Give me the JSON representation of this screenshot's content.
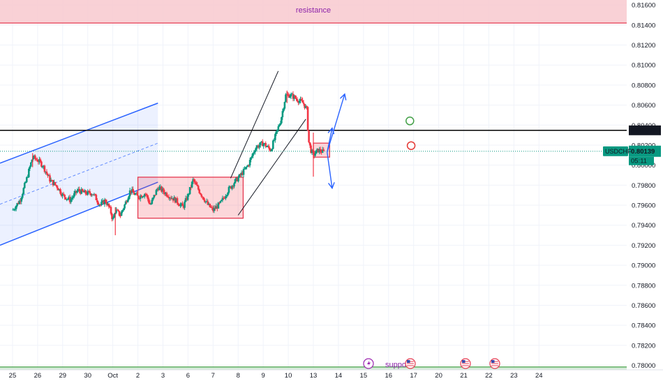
{
  "chart_data": {
    "type": "candlestick",
    "symbol": "USDCHF",
    "last_price": "0.80139",
    "countdown": "05:11",
    "level_label": "0.80348",
    "level_value": 0.80348,
    "ylim": [
      0.77955,
      0.8165
    ],
    "xlim": [
      -0.5,
      24.5
    ],
    "y_ticks": [
      "0.81600",
      "0.81400",
      "0.81200",
      "0.81000",
      "0.80800",
      "0.80600",
      "0.80400",
      "0.80200",
      "0.80000",
      "0.79800",
      "0.79600",
      "0.79400",
      "0.79200",
      "0.79000",
      "0.78800",
      "0.78600",
      "0.78400",
      "0.78200",
      "0.78000"
    ],
    "x_ticks": [
      {
        "label": "25",
        "x": 0
      },
      {
        "label": "26",
        "x": 1
      },
      {
        "label": "29",
        "x": 2
      },
      {
        "label": "30",
        "x": 3
      },
      {
        "label": "Oct",
        "x": 4
      },
      {
        "label": "2",
        "x": 5
      },
      {
        "label": "3",
        "x": 6
      },
      {
        "label": "6",
        "x": 7
      },
      {
        "label": "7",
        "x": 8
      },
      {
        "label": "8",
        "x": 9
      },
      {
        "label": "9",
        "x": 10
      },
      {
        "label": "10",
        "x": 11
      },
      {
        "label": "13",
        "x": 12
      },
      {
        "label": "14",
        "x": 13
      },
      {
        "label": "15",
        "x": 14
      },
      {
        "label": "16",
        "x": 15
      },
      {
        "label": "17",
        "x": 16
      },
      {
        "label": "20",
        "x": 17
      },
      {
        "label": "21",
        "x": 18
      },
      {
        "label": "22",
        "x": 19
      },
      {
        "label": "23",
        "x": 20
      },
      {
        "label": "24",
        "x": 21
      }
    ],
    "price_path": [
      [
        0.0,
        0.7955
      ],
      [
        0.3,
        0.7965
      ],
      [
        0.55,
        0.7985
      ],
      [
        0.8,
        0.8008
      ],
      [
        1.0,
        0.8005
      ],
      [
        1.2,
        0.8
      ],
      [
        1.5,
        0.7985
      ],
      [
        1.8,
        0.7978
      ],
      [
        2.0,
        0.797
      ],
      [
        2.3,
        0.7965
      ],
      [
        2.6,
        0.7975
      ],
      [
        2.9,
        0.7972
      ],
      [
        3.2,
        0.7972
      ],
      [
        3.5,
        0.796
      ],
      [
        3.7,
        0.7965
      ],
      [
        3.9,
        0.7955
      ],
      [
        4.0,
        0.7945
      ],
      [
        4.1,
        0.7955
      ],
      [
        4.3,
        0.795
      ],
      [
        4.5,
        0.7962
      ],
      [
        4.7,
        0.7975
      ],
      [
        5.0,
        0.7968
      ],
      [
        5.3,
        0.7972
      ],
      [
        5.5,
        0.796
      ],
      [
        5.8,
        0.7978
      ],
      [
        6.1,
        0.7972
      ],
      [
        6.5,
        0.7965
      ],
      [
        6.8,
        0.7958
      ],
      [
        7.0,
        0.797
      ],
      [
        7.2,
        0.7985
      ],
      [
        7.5,
        0.7972
      ],
      [
        7.8,
        0.796
      ],
      [
        8.0,
        0.7955
      ],
      [
        8.3,
        0.7962
      ],
      [
        8.6,
        0.7975
      ],
      [
        8.85,
        0.7983
      ],
      [
        9.1,
        0.799
      ],
      [
        9.4,
        0.8
      ],
      [
        9.7,
        0.8018
      ],
      [
        10.0,
        0.8022
      ],
      [
        10.3,
        0.8015
      ],
      [
        10.5,
        0.803
      ],
      [
        10.7,
        0.8045
      ],
      [
        10.9,
        0.807
      ],
      [
        11.1,
        0.807
      ],
      [
        11.4,
        0.8065
      ],
      [
        11.6,
        0.8062
      ],
      [
        11.75,
        0.8055
      ],
      [
        11.8,
        0.8025
      ],
      [
        11.9,
        0.8015
      ],
      [
        12.0,
        0.801
      ],
      [
        12.2,
        0.8015
      ],
      [
        12.4,
        0.8013
      ]
    ],
    "wicks": [
      [
        12.0,
        0.80325,
        0.79885
      ],
      [
        0.8,
        0.8012,
        0.7998
      ],
      [
        10.95,
        0.80745,
        0.8062
      ],
      [
        4.1,
        0.7958,
        0.793
      ]
    ],
    "annotations": {
      "resistance_label": "resistance",
      "support_label": "suppo",
      "resistance_zone": [
        0.8142,
        0.8165
      ],
      "support_zone": [
        0.77955,
        0.7797
      ],
      "box_range": {
        "x": [
          5.0,
          9.2
        ],
        "y": [
          0.7947,
          0.7988
        ]
      },
      "box_small": {
        "x": [
          12.0,
          12.65
        ],
        "y": [
          0.8008,
          0.8022
        ]
      },
      "channel_blue": {
        "lower": [
          [
            -0.5,
            0.792
          ],
          [
            5.8,
            0.7983
          ]
        ],
        "upper": [
          [
            -0.5,
            0.8002
          ],
          [
            5.8,
            0.8062
          ]
        ],
        "mid": [
          [
            -0.5,
            0.7961
          ],
          [
            5.8,
            0.8022
          ]
        ]
      },
      "wedge_black": {
        "upper": [
          [
            8.7,
            0.7987
          ],
          [
            10.6,
            0.8094
          ]
        ],
        "lower": [
          [
            9.0,
            0.795
          ],
          [
            11.7,
            0.8046
          ]
        ]
      },
      "arrows_blue": [
        {
          "from": [
            12.55,
            0.8013
          ],
          "to": [
            12.75,
            0.8037
          ]
        },
        {
          "from": [
            12.55,
            0.8013
          ],
          "to": [
            13.25,
            0.8071
          ]
        },
        {
          "from": [
            12.55,
            0.8013
          ],
          "to": [
            12.75,
            0.7977
          ]
        }
      ],
      "circles": [
        {
          "x": 15.85,
          "y": 0.80442,
          "color": "#43a047"
        },
        {
          "x": 15.9,
          "y": 0.80195,
          "color": "#e53935"
        }
      ]
    },
    "colors": {
      "up": "#089981",
      "down": "#f23645",
      "accent": "#2962ff",
      "level": "#000000"
    }
  }
}
